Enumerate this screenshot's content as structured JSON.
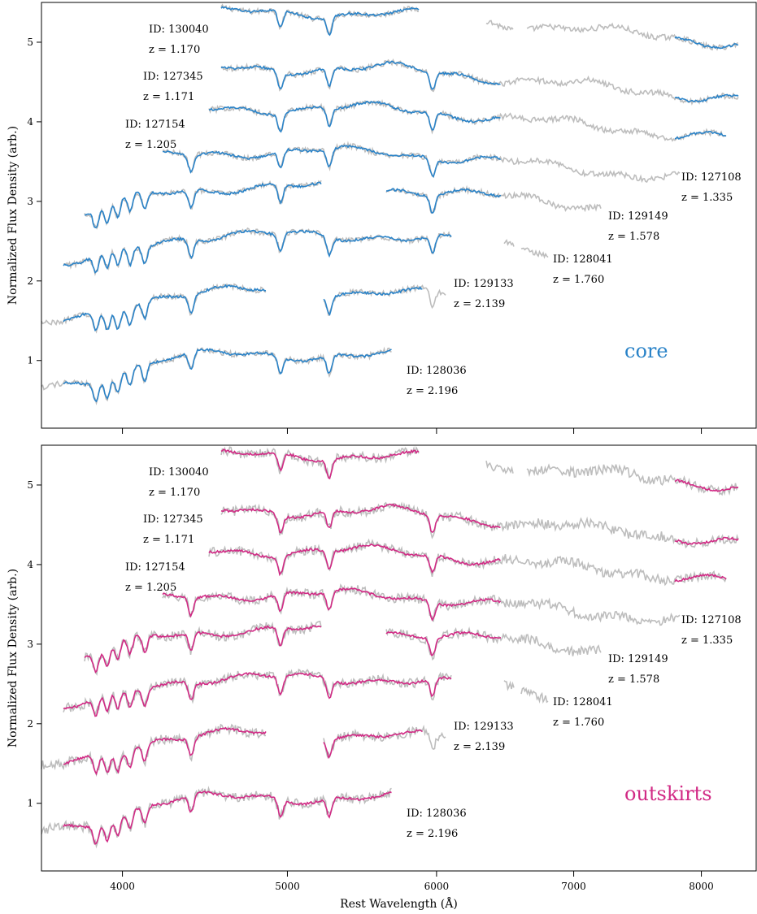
{
  "chart_data": [
    {
      "type": "line",
      "panel": "core",
      "panel_label": "core",
      "panel_label_color": "#2a83c8",
      "model_color": "#2a83c8",
      "data_color": "#bdbdbd",
      "ylabel": "Normalized Flux Density (arb.)",
      "xlabel": "",
      "xlim": [
        3550,
        8450
      ],
      "ylim": [
        0.15,
        5.5
      ],
      "xscale": "sqrt",
      "yticks": [
        "1",
        "2",
        "3",
        "4",
        "5"
      ],
      "xtick_labels_visible": false,
      "annotations": [
        {
          "id": "ID: 130040",
          "z": "z = 1.170"
        },
        {
          "id": "ID: 127345",
          "z": "z = 1.171"
        },
        {
          "id": "ID: 127154",
          "z": "z = 1.205"
        },
        {
          "id": "ID: 127108",
          "z": "z = 1.335"
        },
        {
          "id": "ID: 129149",
          "z": "z = 1.578"
        },
        {
          "id": "ID: 128041",
          "z": "z = 1.760"
        },
        {
          "id": "ID: 129133",
          "z": "z = 2.139"
        },
        {
          "id": "ID: 128036",
          "z": "z = 2.196"
        }
      ]
    },
    {
      "type": "line",
      "panel": "outskirts",
      "panel_label": "outskirts",
      "panel_label_color": "#d12a85",
      "model_color": "#d12a85",
      "data_color": "#bdbdbd",
      "ylabel": "Normalized Flux Density (arb.)",
      "xlabel": "Rest Wavelength (Å)",
      "xlim": [
        3550,
        8450
      ],
      "ylim": [
        0.15,
        5.5
      ],
      "xscale": "sqrt",
      "yticks": [
        "1",
        "2",
        "3",
        "4",
        "5"
      ],
      "xticks": [
        "4000",
        "5000",
        "6000",
        "7000",
        "8000"
      ],
      "annotations": [
        {
          "id": "ID: 130040",
          "z": "z = 1.170"
        },
        {
          "id": "ID: 127345",
          "z": "z = 1.171"
        },
        {
          "id": "ID: 127154",
          "z": "z = 1.205"
        },
        {
          "id": "ID: 127108",
          "z": "z = 1.335"
        },
        {
          "id": "ID: 129149",
          "z": "z = 1.578"
        },
        {
          "id": "ID: 128041",
          "z": "z = 1.760"
        },
        {
          "id": "ID: 129133",
          "z": "z = 2.139"
        },
        {
          "id": "ID: 128036",
          "z": "z = 2.196"
        }
      ]
    }
  ]
}
